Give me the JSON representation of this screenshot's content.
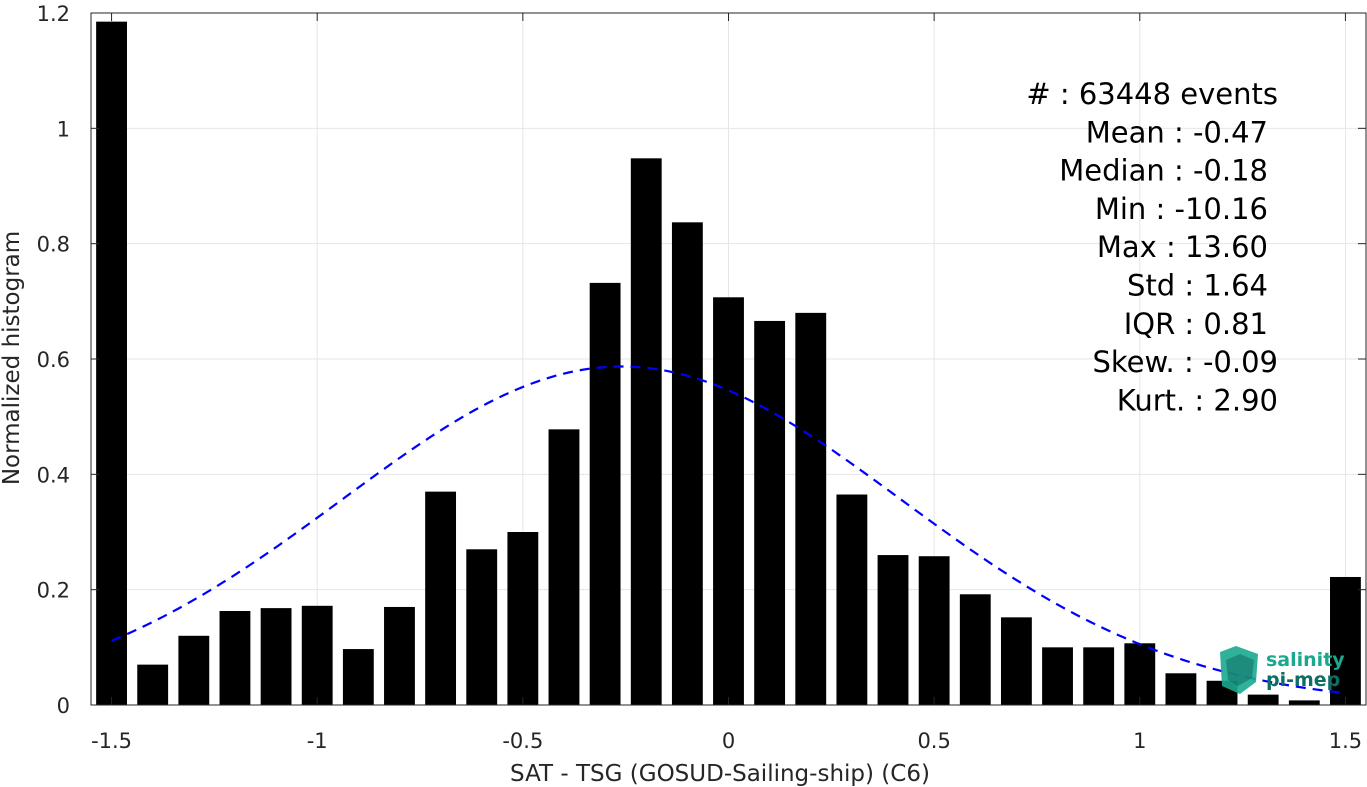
{
  "chart_data": {
    "type": "bar",
    "xlabel": "SAT - TSG (GOSUD-Sailing-ship) (C6)",
    "ylabel": "Normalized histogram",
    "xlim": [
      -1.55,
      1.55
    ],
    "ylim": [
      0,
      1.2
    ],
    "grid": true,
    "bar_color": "#000000",
    "fit_color": "#0000ff",
    "x_ticks": [
      -1.5,
      -1,
      -0.5,
      0,
      0.5,
      1,
      1.5
    ],
    "x_tick_labels": [
      "-1.5",
      "-1",
      "-0.5",
      "0",
      "0.5",
      "1",
      "1.5"
    ],
    "y_ticks": [
      0,
      0.2,
      0.4,
      0.6,
      0.8,
      1,
      1.2
    ],
    "y_tick_labels": [
      "0",
      "0.2",
      "0.4",
      "0.6",
      "0.8",
      "1",
      "1.2"
    ],
    "x": [
      -1.5,
      -1.4,
      -1.3,
      -1.2,
      -1.1,
      -1.0,
      -0.9,
      -0.8,
      -0.7,
      -0.6,
      -0.5,
      -0.4,
      -0.3,
      -0.2,
      -0.1,
      0.0,
      0.1,
      0.2,
      0.3,
      0.4,
      0.5,
      0.6,
      0.7,
      0.8,
      0.9,
      1.0,
      1.1,
      1.2,
      1.3,
      1.4,
      1.5
    ],
    "values": [
      1.185,
      0.07,
      0.12,
      0.163,
      0.168,
      0.172,
      0.097,
      0.17,
      0.37,
      0.27,
      0.3,
      0.478,
      0.732,
      0.948,
      0.837,
      0.707,
      0.666,
      0.68,
      0.365,
      0.26,
      0.258,
      0.192,
      0.152,
      0.1,
      0.1,
      0.107,
      0.055,
      0.042,
      0.018,
      0.008,
      0.222
    ],
    "fit": {
      "style": "dashed",
      "mean": -0.26,
      "sigma": 0.68,
      "peak": 0.587
    },
    "stats": [
      "#  : 63448 events",
      "Mean : -0.47",
      "Median : -0.18",
      "Min : -10.16",
      "Max : 13.60",
      "Std : 1.64",
      "IQR : 0.81",
      "Skew. : -0.09",
      "Kurt. : 2.90"
    ]
  },
  "logo": {
    "line1": "salinity",
    "line2": "pi-mep",
    "color1": "#1aa88f",
    "color2": "#0e6e66"
  }
}
